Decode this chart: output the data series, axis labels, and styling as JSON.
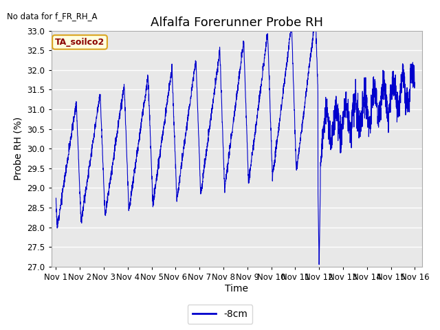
{
  "title": "Alfalfa Forerunner Probe RH",
  "no_data_label": "No data for f_FR_RH_A",
  "ta_soilco2_label": "TA_soilco2",
  "xlabel": "Time",
  "ylabel": "Probe RH (%)",
  "ylim": [
    27.0,
    33.0
  ],
  "yticks": [
    27.0,
    27.5,
    28.0,
    28.5,
    29.0,
    29.5,
    30.0,
    30.5,
    31.0,
    31.5,
    32.0,
    32.5,
    33.0
  ],
  "xtick_labels": [
    "Nov 1",
    "Nov 2",
    "Nov 3",
    "Nov 4",
    "Nov 5",
    "Nov 6",
    "Nov 7",
    "Nov 8",
    "Nov 9",
    "Nov 10",
    "Nov 11",
    "Nov 12",
    "Nov 13",
    "Nov 14",
    "Nov 15",
    "Nov 16"
  ],
  "line_color": "#0000CC",
  "line_label": "-8cm",
  "bg_color": "#E8E8E8",
  "fig_color": "#FFFFFF",
  "title_fontsize": 13,
  "axis_label_fontsize": 10,
  "tick_fontsize": 8.5,
  "legend_fontsize": 10
}
